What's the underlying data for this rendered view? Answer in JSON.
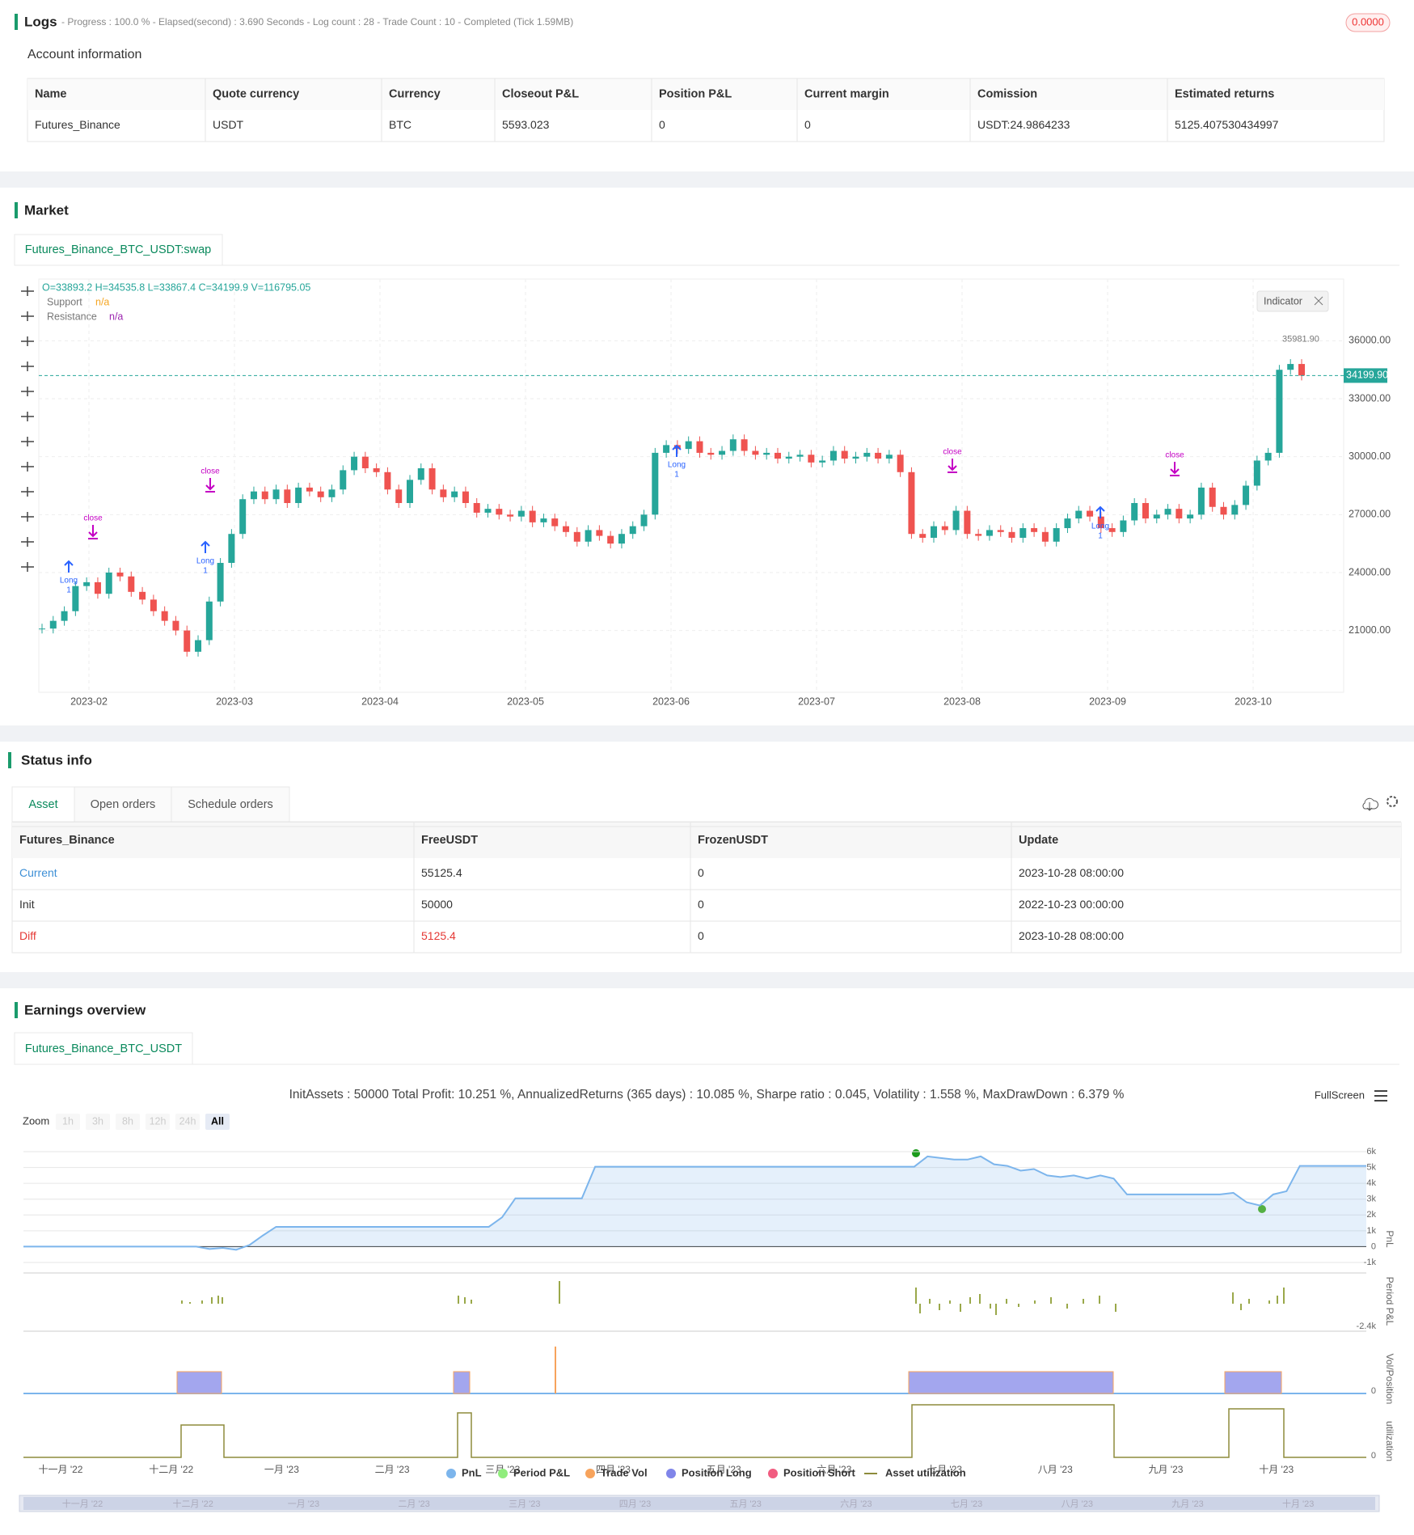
{
  "logs": {
    "title": "Logs",
    "summary": "- Progress : 100.0 % - Elapsed(second) : 3.690  Seconds - Log count : 28 - Trade Count : 10 - Completed (Tick 1.59MB)",
    "badge": "0.0000"
  },
  "account": {
    "title": "Account information",
    "headers": [
      "Name",
      "Quote currency",
      "Currency",
      "Closeout P&L",
      "Position P&L",
      "Current margin",
      "Comission",
      "Estimated returns"
    ],
    "rows": [
      [
        "Futures_Binance",
        "USDT",
        "BTC",
        "5593.023",
        "0",
        "0",
        "USDT:24.9864233",
        "5125.407530434997"
      ]
    ]
  },
  "market": {
    "title": "Market",
    "tab": "Futures_Binance_BTC_USDT:swap",
    "ohlc": "O=33893.2 H=34535.8 L=33867.4 C=34199.9 V=116795.05",
    "legend": [
      {
        "name": "Support",
        "value": "n/a"
      },
      {
        "name": "Resistance",
        "value": "n/a"
      }
    ],
    "indicator": "Indicator",
    "signal_close": "close",
    "signal_long": "Long",
    "signal_count": "1",
    "chart": {
      "type": "candlestick",
      "values": [
        21100,
        21500,
        22000,
        23300,
        23500,
        22900,
        24000,
        23800,
        23000,
        22600,
        22000,
        21500,
        21000,
        19900,
        20500,
        22500,
        24500,
        26000,
        27800,
        28200,
        27800,
        28300,
        27600,
        28400,
        28200,
        27900,
        28300,
        29300,
        30000,
        29400,
        29200,
        28300,
        27600,
        28800,
        29400,
        28300,
        27900,
        28200,
        27600,
        27100,
        27300,
        27000,
        26900,
        27200,
        26600,
        26800,
        26400,
        26100,
        25600,
        26200,
        25900,
        25500,
        26000,
        26400,
        27000,
        30200,
        30600,
        30400,
        30800,
        30200,
        30100,
        30300,
        30900,
        30300,
        30100,
        30200,
        29900,
        30000,
        30100,
        29700,
        29800,
        30300,
        29900,
        30000,
        30200,
        29900,
        30100,
        29200,
        26000,
        25800,
        26400,
        26200,
        27200,
        26000,
        25900,
        26200,
        26100,
        25800,
        26300,
        26100,
        25600,
        26300,
        26800,
        27200,
        26900,
        26300,
        26100,
        26700,
        27600,
        26800,
        27000,
        27300,
        26800,
        27000,
        28400,
        27400,
        27000,
        27500,
        28500,
        29800,
        30200,
        34500,
        34800,
        34200
      ],
      "ylim": [
        17800,
        39200
      ],
      "yticks": [
        {
          "value": 21000,
          "label": "21000.00"
        },
        {
          "value": 24000,
          "label": "24000.00"
        },
        {
          "value": 27000,
          "label": "27000.00"
        },
        {
          "value": 30000,
          "label": "30000.00"
        },
        {
          "value": 33000,
          "label": "33000.00"
        },
        {
          "value": 36000,
          "label": "36000.00"
        }
      ],
      "xticks": [
        "2023-02",
        "2023-03",
        "2023-04",
        "2023-05",
        "2023-06",
        "2023-07",
        "2023-08",
        "2023-09",
        "2023-10"
      ],
      "last": {
        "value": 34199.9,
        "label": "34199.90"
      },
      "high": {
        "value": 35981.9,
        "label": "35981.90"
      }
    }
  },
  "status": {
    "title": "Status info",
    "tabs": [
      "Asset",
      "Open orders",
      "Schedule orders"
    ],
    "headers": [
      "Futures_Binance",
      "FreeUSDT",
      "FrozenUSDT",
      "Update"
    ],
    "rows": [
      [
        "Current",
        "55125.4",
        "0",
        "2023-10-28 08:00:00"
      ],
      [
        "Init",
        "50000",
        "0",
        "2022-10-23 00:00:00"
      ],
      [
        "Diff",
        "5125.4",
        "0",
        "2023-10-28 08:00:00"
      ]
    ]
  },
  "earnings": {
    "title": "Earnings overview",
    "tab": "Futures_Binance_BTC_USDT",
    "summary": "InitAssets : 50000 Total Profit: 10.251 %, AnnualizedReturns (365 days) : 10.085 %, Sharpe ratio : 0.045, Volatility : 1.558 %, MaxDrawDown : 6.379 %",
    "fullscreen": "FullScreen",
    "zoom": "Zoom",
    "zoom_buttons": [
      "1h",
      "3h",
      "8h",
      "12h",
      "24h",
      "All"
    ],
    "chart": {
      "type": "line",
      "values": [
        0,
        0,
        0,
        0,
        0,
        0,
        0,
        0,
        0,
        0,
        0,
        0,
        0,
        0,
        -150,
        -80,
        -200,
        100,
        700,
        1250,
        1250,
        1250,
        1250,
        1250,
        1250,
        1250,
        1250,
        1250,
        1250,
        1250,
        1250,
        1250,
        1250,
        1250,
        1250,
        1250,
        1850,
        3050,
        3050,
        3050,
        3050,
        3050,
        3050,
        5050,
        5050,
        5050,
        5050,
        5050,
        5050,
        5050,
        5050,
        5050,
        5050,
        5050,
        5050,
        5050,
        5050,
        5050,
        5050,
        5050,
        5050,
        5050,
        5050,
        5050,
        5050,
        5050,
        5050,
        5050,
        5700,
        5600,
        5500,
        5500,
        5700,
        5200,
        5100,
        4800,
        4900,
        4500,
        4400,
        4500,
        4300,
        4500,
        4300,
        3300,
        3300,
        3300,
        3300,
        3300,
        3300,
        3300,
        3300,
        3400,
        2800,
        2600,
        3300,
        3500,
        5100,
        5100,
        5100,
        5100,
        5100,
        5100
      ],
      "color": "#7cb5ec",
      "ylim": [
        -1000,
        6000
      ],
      "yticks": [
        {
          "value": -1000,
          "label": "-1k"
        },
        0,
        {
          "value": 1000,
          "label": "1k"
        },
        {
          "value": 2000,
          "label": "2k"
        },
        {
          "value": 3000,
          "label": "3k"
        },
        {
          "value": 4000,
          "label": "4k"
        },
        {
          "value": 5000,
          "label": "5k"
        },
        {
          "value": 6000,
          "label": "6k"
        }
      ],
      "axis_titles": [
        "PnL",
        "Period P&L",
        "Vol/Position",
        "utilization"
      ],
      "period_tick": "-2.4k",
      "zero_tick": "0",
      "xticks": [
        "十一月 '22",
        "十二月 '22",
        "一月 '23",
        "二月 '23",
        "三月 '23",
        "四月 '23",
        "五月 '23",
        "六月 '23",
        "七月 '23",
        "八月 '23",
        "九月 '23",
        "十月 '23"
      ],
      "legend": [
        {
          "name": "PnL",
          "color": "#7cb5ec"
        },
        {
          "name": "Period P&L",
          "color": "#90ed7d"
        },
        {
          "name": "Trade Vol",
          "color": "#f7a35c"
        },
        {
          "name": "Position Long",
          "color": "#8085e9"
        },
        {
          "name": "Position Short",
          "color": "#f15c80"
        },
        {
          "name": "Asset utilization",
          "color": "#8d8b3b"
        }
      ]
    }
  }
}
